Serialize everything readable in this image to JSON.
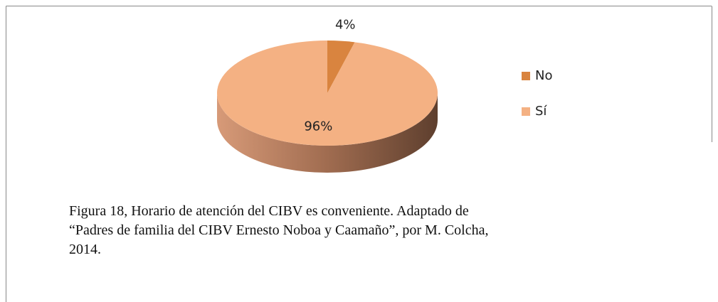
{
  "chart_data": {
    "type": "pie",
    "categories": [
      "No",
      "Sí"
    ],
    "values": [
      4,
      96
    ],
    "value_labels": [
      "4%",
      "96%"
    ],
    "colors": [
      "#d9843f",
      "#f4b183"
    ],
    "legend": "right",
    "caption": [
      "Figura 18, Horario de atención del CIBV es conveniente. Adaptado de",
      "“Padres de familia del CIBV Ernesto Noboa y Caamaño”, por M. Colcha,",
      "2014."
    ]
  }
}
